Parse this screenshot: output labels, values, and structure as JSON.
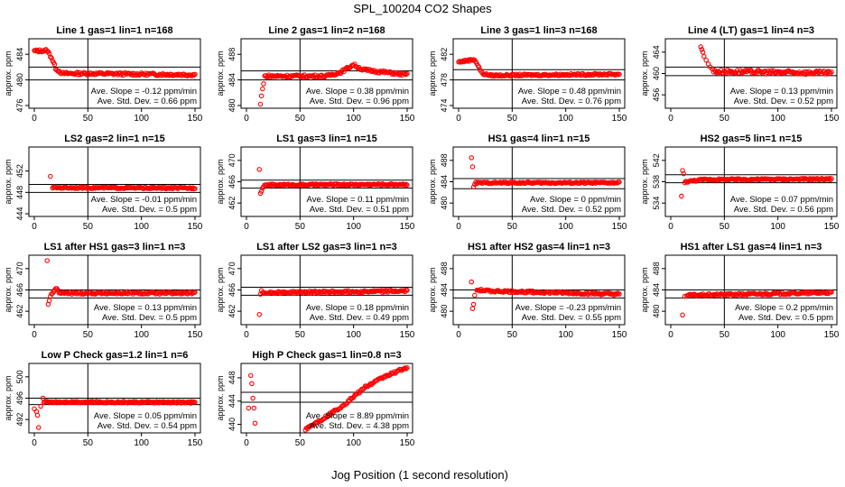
{
  "figure": {
    "title": "SPL_100204  CO2 Shapes",
    "xlabel": "Jog Position (1 second resolution)",
    "panel_ylabel": "approx. ppm",
    "slope_prefix": "Ave. Slope =",
    "slope_unit": "ppm/min",
    "std_prefix": "Ave. Std. Dev. =",
    "std_unit": "ppm",
    "point_color": "#ff0000",
    "line_color": "#000000",
    "x_ticks": [
      0,
      50,
      100,
      150
    ]
  },
  "chart_data": [
    {
      "type": "scatter",
      "title": "Line 1 gas=1 lin=1 n=168",
      "xlim": [
        0,
        150
      ],
      "ylim": [
        476,
        486
      ],
      "yticks": [
        476,
        480,
        484
      ],
      "vline": 50,
      "hlines": [
        482,
        480
      ],
      "slope": "-0.12",
      "std": "0.66",
      "profile": [
        [
          0,
          484.5
        ],
        [
          12,
          484.6
        ],
        [
          16,
          483.5
        ],
        [
          20,
          481.8
        ],
        [
          26,
          481.0
        ],
        [
          50,
          481.0
        ],
        [
          150,
          480.8
        ]
      ],
      "noise": 0.2,
      "outliers": []
    },
    {
      "type": "scatter",
      "title": "Line 2 gas=1 lin=2 n=168",
      "xlim": [
        0,
        150
      ],
      "ylim": [
        480,
        490
      ],
      "yticks": [
        480,
        484,
        488
      ],
      "vline": 50,
      "hlines": [
        485.4,
        484
      ],
      "slope": "0.38",
      "std": "0.96",
      "profile": [
        [
          17,
          484.6
        ],
        [
          75,
          484.6
        ],
        [
          88,
          485.2
        ],
        [
          100,
          486.4
        ],
        [
          108,
          485.6
        ],
        [
          150,
          484.8
        ]
      ],
      "noise": 0.2,
      "outliers": [
        [
          13,
          480.2
        ],
        [
          14,
          481.5
        ],
        [
          15,
          482.6
        ],
        [
          16,
          483.4
        ]
      ]
    },
    {
      "type": "scatter",
      "title": "Line 3 gas=1 lin=3 n=168",
      "xlim": [
        0,
        150
      ],
      "ylim": [
        474,
        484
      ],
      "yticks": [
        474,
        478,
        482
      ],
      "vline": 50,
      "hlines": [
        479.6,
        478
      ],
      "slope": "0.48",
      "std": "0.76",
      "profile": [
        [
          0,
          480.8
        ],
        [
          15,
          481.2
        ],
        [
          22,
          479.0
        ],
        [
          30,
          478.7
        ],
        [
          150,
          478.9
        ]
      ],
      "noise": 0.15,
      "outliers": []
    },
    {
      "type": "scatter",
      "title": "Line 4 (LT) gas=1 lin=4 n=3",
      "xlim": [
        0,
        150
      ],
      "ylim": [
        454,
        466
      ],
      "yticks": [
        456,
        460,
        464
      ],
      "vline": 50,
      "hlines": [
        461.2,
        459.6
      ],
      "slope": "0.13",
      "std": "0.52",
      "profile": [
        [
          40,
          460.4
        ],
        [
          150,
          460.1
        ]
      ],
      "noise": 0.35,
      "outliers": [
        [
          28,
          465.0
        ],
        [
          29,
          464.5
        ],
        [
          30,
          464.0
        ],
        [
          31,
          463.2
        ],
        [
          33,
          462.5
        ],
        [
          35,
          461.8
        ],
        [
          37,
          461.2
        ],
        [
          39,
          460.8
        ]
      ]
    },
    {
      "type": "scatter",
      "title": "LS2 gas=2 lin=1 n=15",
      "xlim": [
        0,
        150
      ],
      "ylim": [
        444,
        456
      ],
      "yticks": [
        444,
        448,
        452
      ],
      "vline": 50,
      "hlines": [
        449.5,
        448
      ],
      "slope": "-0.01",
      "std": "0.5",
      "profile": [
        [
          17,
          448.9
        ],
        [
          150,
          448.8
        ]
      ],
      "noise": 0.15,
      "outliers": [
        [
          15,
          451.0
        ]
      ]
    },
    {
      "type": "scatter",
      "title": "LS1 gas=3 lin=1 n=15",
      "xlim": [
        0,
        150
      ],
      "ylim": [
        460,
        472
      ],
      "yticks": [
        462,
        466,
        470
      ],
      "vline": 50,
      "hlines": [
        466.3,
        464.8
      ],
      "slope": "0.11",
      "std": "0.51",
      "profile": [
        [
          16,
          465.2
        ],
        [
          20,
          465.4
        ],
        [
          150,
          465.5
        ]
      ],
      "noise": 0.15,
      "outliers": [
        [
          12,
          468.3
        ],
        [
          13,
          463.8
        ],
        [
          14,
          464.2
        ],
        [
          15,
          464.8
        ]
      ]
    },
    {
      "type": "scatter",
      "title": "HS1 gas=4 lin=1 n=15",
      "xlim": [
        0,
        150
      ],
      "ylim": [
        478,
        490
      ],
      "yticks": [
        480,
        484,
        488
      ],
      "vline": 50,
      "hlines": [
        484.6,
        482.7
      ],
      "slope": "0",
      "std": "0.52",
      "profile": [
        [
          16,
          483.8
        ],
        [
          150,
          483.8
        ]
      ],
      "noise": 0.15,
      "outliers": [
        [
          12,
          488.5
        ],
        [
          13,
          486.8
        ],
        [
          14,
          483.0
        ],
        [
          15,
          483.5
        ]
      ]
    },
    {
      "type": "scatter",
      "title": "HS2 gas=5 lin=1 n=15",
      "xlim": [
        0,
        150
      ],
      "ylim": [
        532,
        544
      ],
      "yticks": [
        534,
        538,
        542
      ],
      "vline": 50,
      "hlines": [
        539.3,
        537.8
      ],
      "slope": "0.07",
      "std": "0.56",
      "profile": [
        [
          14,
          538.0
        ],
        [
          30,
          538.4
        ],
        [
          150,
          538.5
        ]
      ],
      "noise": 0.15,
      "outliers": [
        [
          10,
          535.3
        ],
        [
          11,
          540.1
        ],
        [
          12,
          539.5
        ],
        [
          13,
          537.8
        ]
      ]
    },
    {
      "type": "scatter",
      "title": "LS1 after HS1 gas=3 lin=1 n=3",
      "xlim": [
        0,
        150
      ],
      "ylim": [
        460,
        472
      ],
      "yticks": [
        462,
        466,
        470
      ],
      "vline": 50,
      "hlines": [
        466.0,
        464.5
      ],
      "slope": "0.13",
      "std": "0.5",
      "profile": [
        [
          16,
          465.2
        ],
        [
          20,
          466.3
        ],
        [
          24,
          465.4
        ],
        [
          150,
          465.4
        ]
      ],
      "noise": 0.2,
      "outliers": [
        [
          12,
          471.5
        ],
        [
          13,
          463.3
        ],
        [
          14,
          464.0
        ],
        [
          15,
          464.8
        ]
      ]
    },
    {
      "type": "scatter",
      "title": "LS1 after LS2 gas=3 lin=1 n=3",
      "xlim": [
        0,
        150
      ],
      "ylim": [
        460,
        472
      ],
      "yticks": [
        462,
        466,
        470
      ],
      "vline": 50,
      "hlines": [
        466.5,
        465.0
      ],
      "slope": "0.18",
      "std": "0.49",
      "profile": [
        [
          15,
          465.5
        ],
        [
          150,
          465.8
        ]
      ],
      "noise": 0.2,
      "outliers": [
        [
          12,
          461.4
        ],
        [
          13,
          465.2
        ],
        [
          14,
          465.9
        ]
      ]
    },
    {
      "type": "scatter",
      "title": "HS1 after HS2 gas=4 lin=1 n=3",
      "xlim": [
        0,
        150
      ],
      "ylim": [
        478,
        490
      ],
      "yticks": [
        480,
        484,
        488
      ],
      "vline": 50,
      "hlines": [
        484.0,
        482.5
      ],
      "slope": "-0.23",
      "std": "0.55",
      "profile": [
        [
          17,
          484.0
        ],
        [
          30,
          483.8
        ],
        [
          150,
          483.2
        ]
      ],
      "noise": 0.2,
      "outliers": [
        [
          12,
          485.5
        ],
        [
          13,
          480.5
        ],
        [
          14,
          481.3
        ],
        [
          15,
          483.0
        ]
      ]
    },
    {
      "type": "scatter",
      "title": "HS1 after LS1 gas=4 lin=1 n=3",
      "xlim": [
        0,
        150
      ],
      "ylim": [
        478,
        490
      ],
      "yticks": [
        480,
        484,
        488
      ],
      "vline": 50,
      "hlines": [
        484.0,
        482.5
      ],
      "slope": "0.2",
      "std": "0.5",
      "profile": [
        [
          15,
          483.0
        ],
        [
          150,
          483.5
        ]
      ],
      "noise": 0.2,
      "outliers": [
        [
          11,
          479.3
        ],
        [
          13,
          482.8
        ]
      ]
    },
    {
      "type": "scatter",
      "title": "Low P Check gas=1.2 lin=1 n=6",
      "xlim": [
        0,
        150
      ],
      "ylim": [
        490,
        502
      ],
      "yticks": [
        492,
        496,
        500
      ],
      "vline": 50,
      "hlines": [
        496.0,
        494.8
      ],
      "slope": "0.05",
      "std": "0.54",
      "profile": [
        [
          9,
          495.3
        ],
        [
          150,
          495.2
        ]
      ],
      "noise": 0.15,
      "outliers": [
        [
          0,
          494.0
        ],
        [
          2,
          493.5
        ],
        [
          3,
          492.8
        ],
        [
          4,
          490.5
        ],
        [
          6,
          494.5
        ],
        [
          8,
          496.0
        ]
      ]
    },
    {
      "type": "scatter",
      "title": "High P Check gas=1 lin=0.8 n=3",
      "xlim": [
        0,
        150
      ],
      "ylim": [
        439,
        450
      ],
      "yticks": [
        440,
        444,
        448
      ],
      "vline": 50,
      "hlines": [
        445.5,
        443.8
      ],
      "slope": "8.89",
      "std": "4.38",
      "profile": [
        [
          55,
          439.2
        ],
        [
          70,
          440.8
        ],
        [
          90,
          443.2
        ],
        [
          110,
          446.3
        ],
        [
          130,
          448.3
        ],
        [
          150,
          449.8
        ]
      ],
      "noise": 0.2,
      "outliers": [
        [
          2,
          442.8
        ],
        [
          4,
          448.4
        ],
        [
          5,
          447.0
        ],
        [
          6,
          444.5
        ],
        [
          7,
          442.8
        ],
        [
          8,
          440.2
        ]
      ]
    }
  ]
}
